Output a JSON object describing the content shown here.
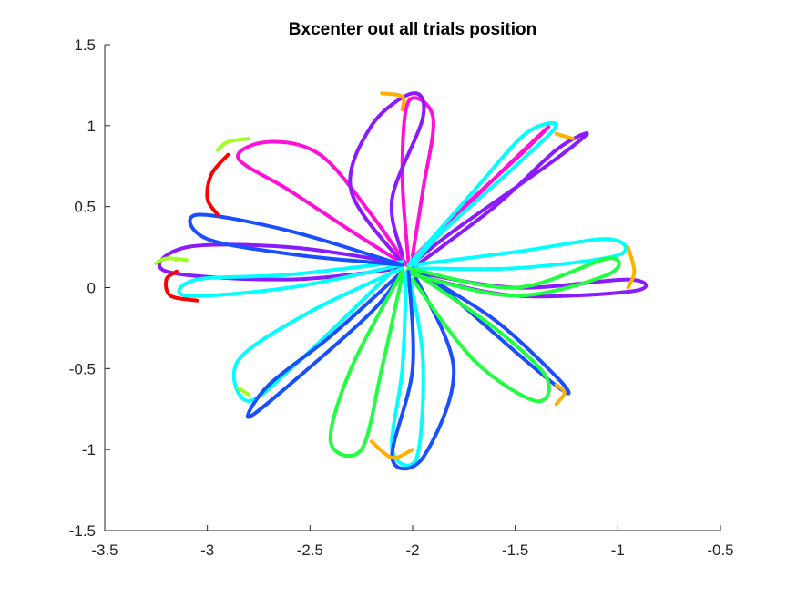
{
  "chart_data": {
    "type": "line",
    "title": "Bxcenter out all trials position",
    "xlabel": "",
    "ylabel": "",
    "xlim": [
      -3.5,
      -0.5
    ],
    "ylim": [
      -1.5,
      1.5
    ],
    "x_ticks": [
      "-3.5",
      "-3",
      "-2.5",
      "-2",
      "-1.5",
      "-1",
      "-0.5"
    ],
    "y_ticks": [
      "1.5",
      "1",
      "0.5",
      "0",
      "-0.5",
      "-1",
      "-1.5"
    ],
    "x_tick_values": [
      -3.5,
      -3,
      -2.5,
      -2,
      -1.5,
      -1,
      -0.5
    ],
    "y_tick_values": [
      1.5,
      1,
      0.5,
      0,
      -0.5,
      -1,
      -1.5
    ],
    "grid": false,
    "legend": "none",
    "colors": [
      "#ff0000",
      "#ffb000",
      "#a0ff20",
      "#20ff40",
      "#00ffff",
      "#1a4fff",
      "#8a1aff",
      "#ff10d8"
    ],
    "center": [
      -2.03,
      0.14
    ],
    "series": [
      {
        "color": "#ff10d8",
        "points": [
          [
            -2.03,
            0.14
          ],
          [
            -2.2,
            0.45
          ],
          [
            -2.45,
            0.82
          ],
          [
            -2.7,
            0.9
          ],
          [
            -2.85,
            0.8
          ],
          [
            -2.6,
            0.6
          ],
          [
            -2.3,
            0.35
          ],
          [
            -2.05,
            0.15
          ]
        ]
      },
      {
        "color": "#ff10d8",
        "points": [
          [
            -2.02,
            0.15
          ],
          [
            -2.05,
            0.7
          ],
          [
            -2.02,
            1.15
          ],
          [
            -1.9,
            1.05
          ],
          [
            -1.95,
            0.6
          ],
          [
            -2.0,
            0.2
          ]
        ]
      },
      {
        "color": "#ff10d8",
        "points": [
          [
            -2.0,
            0.15
          ],
          [
            -1.7,
            0.55
          ],
          [
            -1.35,
            0.98
          ],
          [
            -1.45,
            0.85
          ],
          [
            -1.75,
            0.5
          ],
          [
            -2.0,
            0.18
          ]
        ]
      },
      {
        "color": "#8a1aff",
        "points": [
          [
            -2.05,
            0.15
          ],
          [
            -2.3,
            0.6
          ],
          [
            -2.2,
            1.0
          ],
          [
            -2.0,
            1.2
          ],
          [
            -1.95,
            1.05
          ],
          [
            -2.1,
            0.55
          ],
          [
            -2.05,
            0.2
          ]
        ]
      },
      {
        "color": "#8a1aff",
        "points": [
          [
            -2.0,
            0.12
          ],
          [
            -1.6,
            0.5
          ],
          [
            -1.3,
            0.85
          ],
          [
            -1.15,
            0.95
          ],
          [
            -1.35,
            0.75
          ],
          [
            -1.8,
            0.35
          ],
          [
            -2.0,
            0.15
          ]
        ]
      },
      {
        "color": "#8a1aff",
        "points": [
          [
            -2.05,
            0.12
          ],
          [
            -2.6,
            0.05
          ],
          [
            -3.2,
            0.1
          ],
          [
            -3.1,
            0.25
          ],
          [
            -2.6,
            0.25
          ],
          [
            -2.1,
            0.16
          ]
        ]
      },
      {
        "color": "#8a1aff",
        "points": [
          [
            -2.0,
            0.1
          ],
          [
            -1.5,
            0.0
          ],
          [
            -0.95,
            0.05
          ],
          [
            -0.92,
            -0.02
          ],
          [
            -1.5,
            -0.05
          ],
          [
            -2.0,
            0.08
          ]
        ]
      },
      {
        "color": "#00ffff",
        "points": [
          [
            -2.02,
            0.14
          ],
          [
            -1.7,
            0.6
          ],
          [
            -1.45,
            0.95
          ],
          [
            -1.3,
            1.0
          ],
          [
            -1.5,
            0.75
          ],
          [
            -1.85,
            0.35
          ],
          [
            -2.0,
            0.14
          ]
        ]
      },
      {
        "color": "#00ffff",
        "points": [
          [
            -2.0,
            0.14
          ],
          [
            -1.5,
            0.22
          ],
          [
            -1.05,
            0.3
          ],
          [
            -1.0,
            0.2
          ],
          [
            -1.5,
            0.12
          ],
          [
            -2.0,
            0.12
          ]
        ]
      },
      {
        "color": "#00ffff",
        "points": [
          [
            -2.05,
            0.12
          ],
          [
            -2.5,
            -0.15
          ],
          [
            -2.85,
            -0.45
          ],
          [
            -2.8,
            -0.7
          ],
          [
            -2.55,
            -0.45
          ],
          [
            -2.1,
            0.1
          ]
        ]
      },
      {
        "color": "#00ffff",
        "points": [
          [
            -2.02,
            0.1
          ],
          [
            -1.95,
            -0.45
          ],
          [
            -1.98,
            -1.05
          ],
          [
            -2.1,
            -1.0
          ],
          [
            -2.05,
            -0.5
          ],
          [
            -2.03,
            0.1
          ]
        ]
      },
      {
        "color": "#00ffff",
        "points": [
          [
            -2.05,
            0.14
          ],
          [
            -2.6,
            0.0
          ],
          [
            -3.1,
            -0.05
          ],
          [
            -3.05,
            0.05
          ],
          [
            -2.6,
            0.08
          ],
          [
            -2.05,
            0.16
          ]
        ]
      },
      {
        "color": "#1a4fff",
        "points": [
          [
            -2.05,
            0.1
          ],
          [
            -2.4,
            -0.3
          ],
          [
            -2.7,
            -0.6
          ],
          [
            -2.8,
            -0.8
          ],
          [
            -2.6,
            -0.6
          ],
          [
            -2.2,
            -0.15
          ],
          [
            -2.05,
            0.1
          ]
        ]
      },
      {
        "color": "#1a4fff",
        "points": [
          [
            -2.05,
            0.14
          ],
          [
            -2.6,
            0.35
          ],
          [
            -3.05,
            0.45
          ],
          [
            -3.0,
            0.3
          ],
          [
            -2.55,
            0.2
          ],
          [
            -2.05,
            0.14
          ]
        ]
      },
      {
        "color": "#1a4fff",
        "points": [
          [
            -2.0,
            0.12
          ],
          [
            -1.6,
            -0.2
          ],
          [
            -1.3,
            -0.55
          ],
          [
            -1.25,
            -0.65
          ],
          [
            -1.45,
            -0.45
          ],
          [
            -1.9,
            0.05
          ]
        ]
      },
      {
        "color": "#1a4fff",
        "points": [
          [
            -2.0,
            0.1
          ],
          [
            -1.8,
            -0.5
          ],
          [
            -1.95,
            -1.05
          ],
          [
            -2.1,
            -1.05
          ],
          [
            -2.0,
            -0.5
          ],
          [
            -2.02,
            0.1
          ]
        ]
      },
      {
        "color": "#20ff40",
        "points": [
          [
            -2.05,
            0.1
          ],
          [
            -2.3,
            -0.5
          ],
          [
            -2.4,
            -0.95
          ],
          [
            -2.25,
            -1.0
          ],
          [
            -2.15,
            -0.5
          ],
          [
            -2.05,
            0.08
          ]
        ]
      },
      {
        "color": "#20ff40",
        "points": [
          [
            -2.0,
            0.1
          ],
          [
            -1.6,
            -0.25
          ],
          [
            -1.35,
            -0.55
          ],
          [
            -1.4,
            -0.7
          ],
          [
            -1.7,
            -0.45
          ],
          [
            -2.0,
            0.05
          ]
        ]
      },
      {
        "color": "#20ff40",
        "points": [
          [
            -2.02,
            0.12
          ],
          [
            -1.5,
            0.0
          ],
          [
            -1.05,
            0.18
          ],
          [
            -1.05,
            0.08
          ],
          [
            -1.5,
            -0.05
          ],
          [
            -2.0,
            0.08
          ]
        ]
      },
      {
        "color": "#ff0000",
        "points": [
          [
            -2.9,
            0.82
          ],
          [
            -2.98,
            0.7
          ],
          [
            -3.0,
            0.55
          ],
          [
            -2.95,
            0.45
          ]
        ]
      },
      {
        "color": "#ff0000",
        "points": [
          [
            -3.15,
            0.1
          ],
          [
            -3.2,
            0.05
          ],
          [
            -3.18,
            -0.05
          ],
          [
            -3.05,
            -0.08
          ]
        ]
      },
      {
        "color": "#ffb000",
        "points": [
          [
            -2.15,
            1.2
          ],
          [
            -2.05,
            1.18
          ],
          [
            -2.05,
            1.1
          ]
        ]
      },
      {
        "color": "#ffb000",
        "points": [
          [
            -1.3,
            0.95
          ],
          [
            -1.22,
            0.92
          ]
        ]
      },
      {
        "color": "#ffb000",
        "points": [
          [
            -2.2,
            -0.95
          ],
          [
            -2.1,
            -1.05
          ],
          [
            -2.0,
            -1.0
          ]
        ]
      },
      {
        "color": "#ffb000",
        "points": [
          [
            -1.3,
            -0.6
          ],
          [
            -1.26,
            -0.65
          ],
          [
            -1.3,
            -0.72
          ]
        ]
      },
      {
        "color": "#ffb000",
        "points": [
          [
            -0.95,
            0.25
          ],
          [
            -0.92,
            0.1
          ],
          [
            -0.95,
            0.0
          ]
        ]
      },
      {
        "color": "#a0ff20",
        "points": [
          [
            -2.95,
            0.85
          ],
          [
            -2.9,
            0.9
          ],
          [
            -2.8,
            0.92
          ]
        ]
      },
      {
        "color": "#a0ff20",
        "points": [
          [
            -3.25,
            0.15
          ],
          [
            -3.2,
            0.18
          ],
          [
            -3.1,
            0.17
          ]
        ]
      },
      {
        "color": "#a0ff20",
        "points": [
          [
            -2.85,
            -0.62
          ],
          [
            -2.8,
            -0.66
          ]
        ]
      }
    ]
  }
}
